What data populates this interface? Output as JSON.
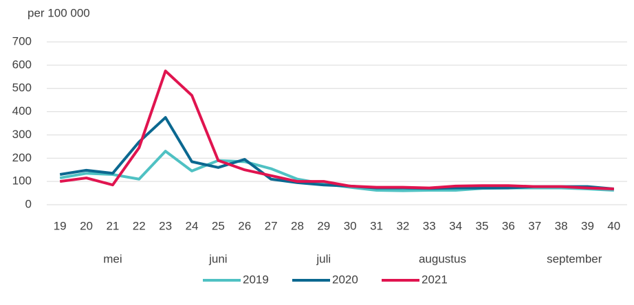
{
  "chart_data": {
    "type": "line",
    "y_label": "per 100 000",
    "categories": [
      "19",
      "20",
      "21",
      "22",
      "23",
      "24",
      "25",
      "26",
      "27",
      "28",
      "29",
      "30",
      "31",
      "32",
      "33",
      "34",
      "35",
      "36",
      "37",
      "38",
      "39",
      "40"
    ],
    "months": [
      "mei",
      "juni",
      "juli",
      "augustus",
      "september"
    ],
    "series": [
      {
        "name": "2019",
        "color": "#4fc1c3",
        "values": [
          115,
          135,
          130,
          110,
          230,
          145,
          190,
          185,
          155,
          110,
          90,
          75,
          62,
          60,
          62,
          62,
          70,
          72,
          72,
          72,
          68,
          62
        ]
      },
      {
        "name": "2020",
        "color": "#0b6890",
        "values": [
          130,
          148,
          135,
          270,
          375,
          185,
          160,
          195,
          110,
          95,
          85,
          80,
          72,
          72,
          70,
          72,
          72,
          72,
          78,
          78,
          78,
          68
        ]
      },
      {
        "name": "2021",
        "color": "#e0144f",
        "values": [
          100,
          115,
          85,
          245,
          575,
          470,
          190,
          150,
          125,
          100,
          100,
          80,
          75,
          75,
          72,
          80,
          82,
          82,
          78,
          78,
          72,
          68
        ]
      }
    ],
    "ylim": [
      0,
      700
    ],
    "yticks": [
      0,
      100,
      200,
      300,
      400,
      500,
      600,
      700
    ],
    "grid": true,
    "legend": "bottom"
  }
}
